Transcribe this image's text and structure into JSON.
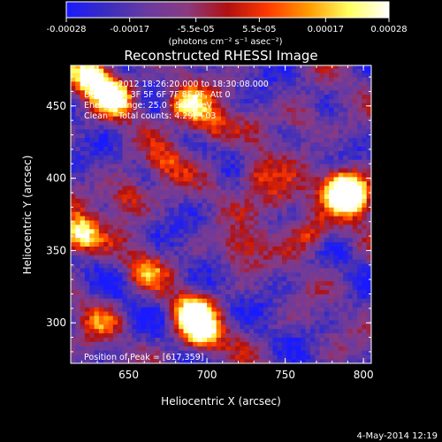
{
  "chart_data": {
    "type": "heatmap",
    "title": "Reconstructed RHESSI Image",
    "xlabel": "Heliocentric X (arcsec)",
    "ylabel": "Heliocentric Y (arcsec)",
    "xlim": [
      613,
      805
    ],
    "ylim": [
      272,
      478
    ],
    "xticks": [
      650,
      700,
      750,
      800
    ],
    "yticks": [
      300,
      350,
      400,
      450
    ],
    "colorbar": {
      "min": -0.00028,
      "max": 0.00028,
      "ticks": [
        "-0.00028",
        "-0.00017",
        "-5.5e-05",
        "5.5e-05",
        "0.00017",
        "0.00028"
      ],
      "tick_values": [
        -0.00028,
        -0.00017,
        -5.5e-05,
        5.5e-05,
        0.00017,
        0.00028
      ],
      "label": "(photons cm⁻² s⁻¹ asec⁻²)",
      "colors": [
        "#1a1aff",
        "#3a2dbf",
        "#6a3aa0",
        "#8a3a80",
        "#b01010",
        "#ff3a00",
        "#ff9a00",
        "#ffff60",
        "#ffffff"
      ]
    },
    "annotations": {
      "time_range": "12-May-2012 18:26:20.000 to 18:30:08.000",
      "detectors": "Detectors: 3F 5F 6F 7F 8F 9F, Att 0",
      "energy_range": "Energy Range: 25.0 - 50.0 keV",
      "method_counts": "Clean    Total counts: 4.29E+03",
      "peak": "Position of Peak = [617,359]",
      "footer_date": "4-May-2014 12:19"
    },
    "peak": [
      617,
      359
    ],
    "hotspots": [
      {
        "x": 617,
        "y": 359,
        "amp": 1.0
      },
      {
        "x": 625,
        "y": 470,
        "amp": 1.0
      },
      {
        "x": 640,
        "y": 455,
        "amp": 0.9
      },
      {
        "x": 685,
        "y": 450,
        "amp": 0.85
      },
      {
        "x": 700,
        "y": 435,
        "amp": 0.6
      },
      {
        "x": 690,
        "y": 305,
        "amp": 0.95
      },
      {
        "x": 695,
        "y": 290,
        "amp": 0.8
      },
      {
        "x": 785,
        "y": 393,
        "amp": 0.95
      },
      {
        "x": 793,
        "y": 385,
        "amp": 0.8
      },
      {
        "x": 730,
        "y": 400,
        "amp": 0.55
      },
      {
        "x": 745,
        "y": 383,
        "amp": 0.5
      },
      {
        "x": 765,
        "y": 360,
        "amp": 0.55
      },
      {
        "x": 720,
        "y": 350,
        "amp": 0.45
      },
      {
        "x": 648,
        "y": 385,
        "amp": 0.5
      },
      {
        "x": 660,
        "y": 335,
        "amp": 0.45
      },
      {
        "x": 630,
        "y": 300,
        "amp": 0.4
      },
      {
        "x": 760,
        "y": 440,
        "amp": 0.35
      },
      {
        "x": 672,
        "y": 408,
        "amp": 0.4
      }
    ]
  }
}
